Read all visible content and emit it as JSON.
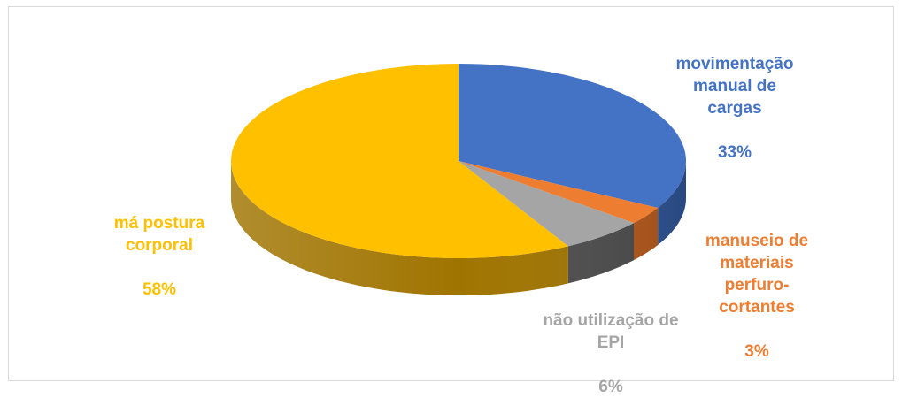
{
  "chart_data": {
    "type": "pie",
    "style": "3d",
    "title": "",
    "slices": [
      {
        "category": "movimentação manual de cargas",
        "label": "movimentação\nmanual de\ncargas",
        "value_label": "33%",
        "value": 33,
        "color": "#4472C4",
        "side_color": "#2F5597"
      },
      {
        "category": "manuseio de materiais perfuro-cortantes",
        "label": "manuseio de\nmateriais\nperfuro-\ncortantes",
        "value_label": "3%",
        "value": 3,
        "color": "#ED7D31",
        "side_color": "#B85A1C"
      },
      {
        "category": "não utilização de EPI",
        "label": "não utilização de\nEPI",
        "value_label": "6%",
        "value": 6,
        "color": "#A5A5A5",
        "side_color": "#4D4D4D"
      },
      {
        "category": "má postura corporal",
        "label": "má postura\ncorporal",
        "value_label": "58%",
        "value": 58,
        "color": "#FFC000",
        "side_color": "#A07400"
      }
    ],
    "legend": "none"
  }
}
